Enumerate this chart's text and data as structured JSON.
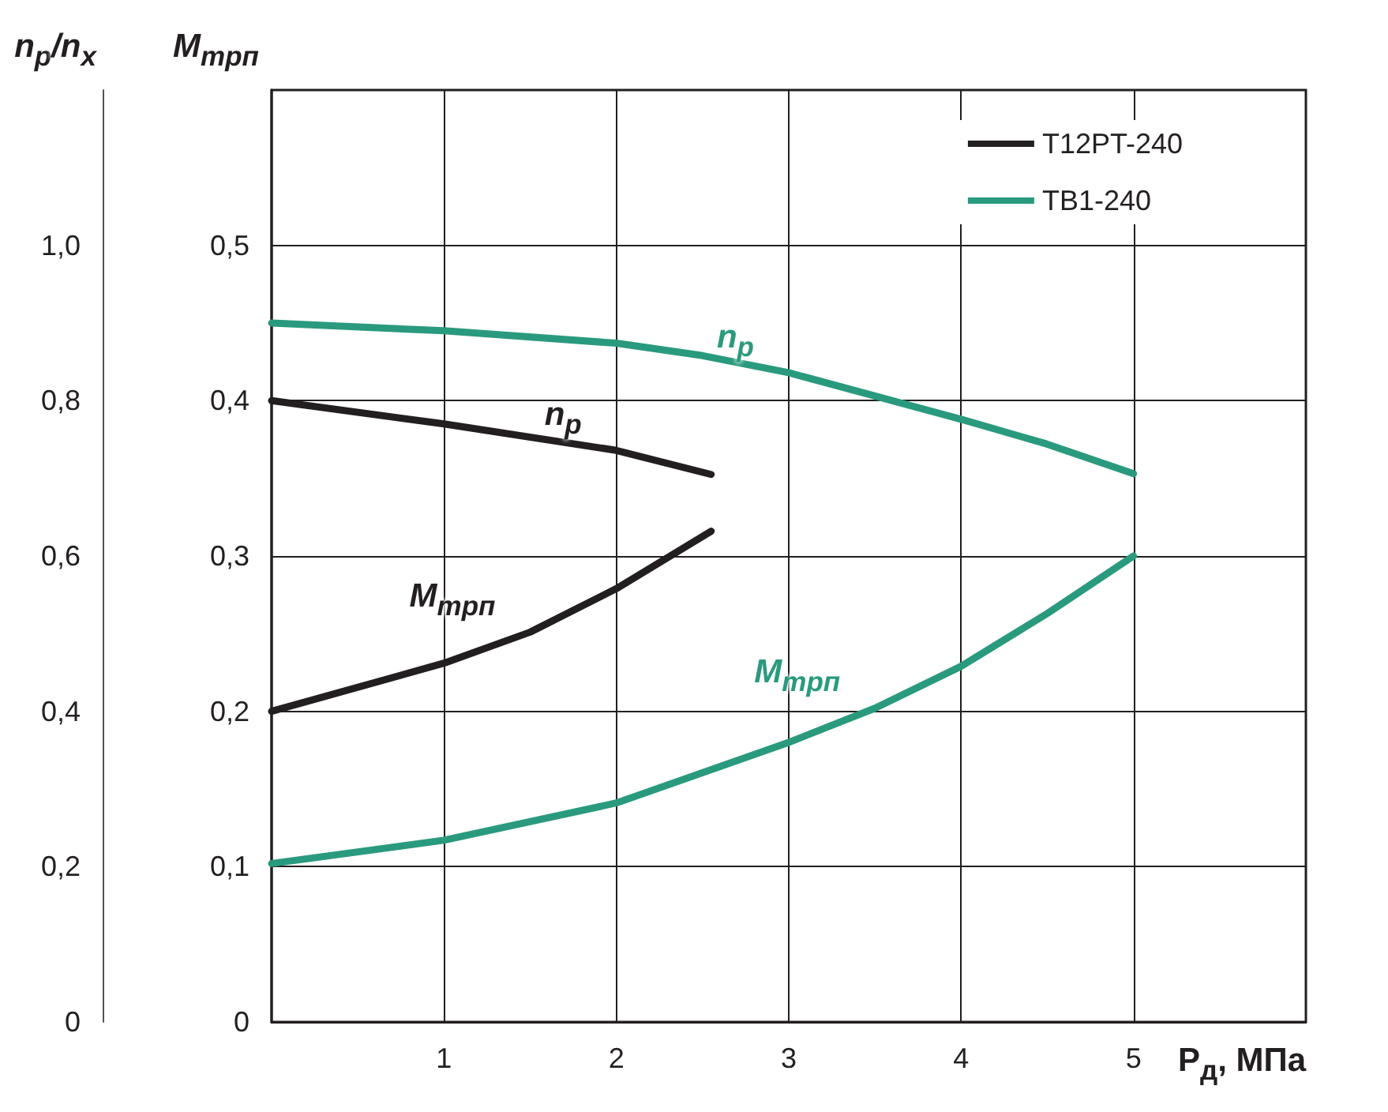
{
  "chart_data": {
    "type": "line",
    "xlabel": "P$_{д}$, МПа",
    "ylabel": "M$_{трп}$",
    "y2label": "n$_{p}$/n$_{x}$",
    "xlim": [
      0,
      6
    ],
    "xticks": [
      1,
      2,
      3,
      4,
      5
    ],
    "ylim": [
      0,
      0.6
    ],
    "yticks": [
      0,
      {
        "value": 0.1,
        "label": "0,1"
      },
      {
        "value": 0.2,
        "label": "0,2"
      },
      {
        "value": 0.3,
        "label": "0,3"
      },
      {
        "value": 0.4,
        "label": "0,4"
      },
      {
        "value": 0.5,
        "label": "0,5"
      }
    ],
    "y2lim": [
      0,
      1.2
    ],
    "y2ticks": [
      0,
      {
        "value": 0.2,
        "label": "0,2"
      },
      {
        "value": 0.4,
        "label": "0,4"
      },
      {
        "value": 0.6,
        "label": "0,6"
      },
      {
        "value": 0.8,
        "label": "0,8"
      },
      {
        "value": 1.0,
        "label": "1,0"
      }
    ],
    "grid": true,
    "legend": "top right",
    "marker": "none",
    "line_style": "solid",
    "series": [
      {
        "name": "T12PT-240",
        "color": "#231f20",
        "axis": "y2",
        "x": [
          0,
          1,
          2,
          2.55
        ],
        "values": [
          0.8,
          0.77,
          0.736,
          0.705
        ]
      },
      {
        "color": "#231f20",
        "x": [
          0,
          1,
          1.5,
          2,
          2.55
        ],
        "values": [
          0.2,
          0.231,
          0.251,
          0.279,
          0.316
        ]
      },
      {
        "name": "TB1-240",
        "color": "#2a9a7e",
        "axis": "y2",
        "x": [
          0,
          1,
          2,
          2.5,
          3,
          3.5,
          4,
          4.5,
          5
        ],
        "values": [
          0.9,
          0.89,
          0.874,
          0.858,
          0.836,
          0.806,
          0.776,
          0.744,
          0.706
        ]
      },
      {
        "color": "#2a9a7e",
        "x": [
          0,
          1,
          2,
          3,
          3.5,
          4,
          4.5,
          5
        ],
        "values": [
          0.102,
          0.117,
          0.141,
          0.18,
          0.202,
          0.229,
          0.263,
          0.3
        ]
      }
    ],
    "annotations": [
      "n$_{p}$",
      "M$_{трп}$",
      "n$_{p}$",
      "M$_{трп}$"
    ]
  }
}
